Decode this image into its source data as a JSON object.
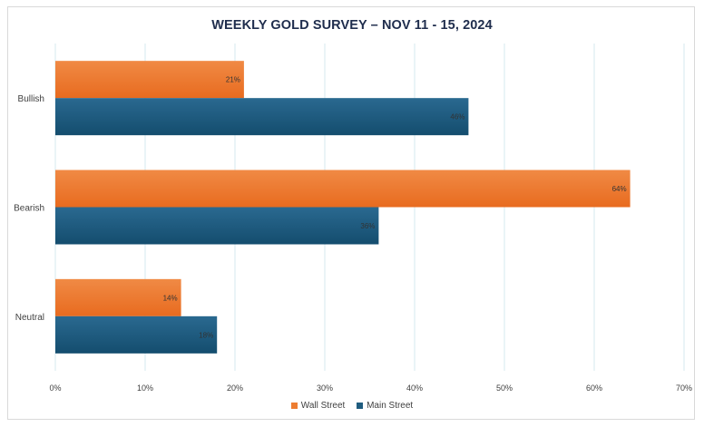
{
  "chart_data": {
    "type": "bar",
    "orientation": "horizontal",
    "title": "WEEKLY GOLD SURVEY – NOV 11 - 15, 2024",
    "categories": [
      "Bullish",
      "Bearish",
      "Neutral"
    ],
    "series": [
      {
        "name": "Wall Street",
        "values": [
          21,
          64,
          14
        ],
        "labels": [
          "21%",
          "64%",
          "14%"
        ],
        "color": "#ed7d31"
      },
      {
        "name": "Main Street",
        "values": [
          46,
          36,
          18
        ],
        "labels": [
          "46%",
          "36%",
          "18%"
        ],
        "color": "#1f5c7f"
      }
    ],
    "xlim": [
      0,
      70
    ],
    "xticks": [
      "0%",
      "10%",
      "20%",
      "30%",
      "40%",
      "50%",
      "60%",
      "70%"
    ],
    "grid": true,
    "legend_position": "bottom"
  }
}
